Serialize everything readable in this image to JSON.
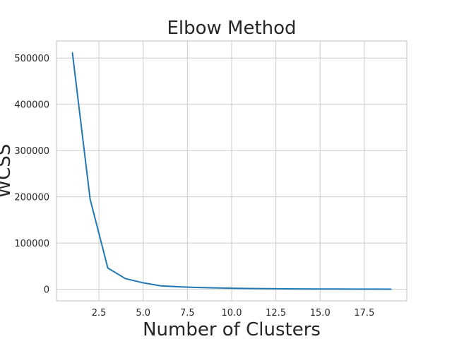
{
  "chart_data": {
    "type": "line",
    "title": "Elbow  Method",
    "xlabel": "Number of Clusters",
    "ylabel": "WCSS",
    "xlim": [
      0.1,
      19.9
    ],
    "ylim": [
      -25000,
      537000
    ],
    "xticks": [
      2.5,
      5.0,
      7.5,
      10.0,
      12.5,
      15.0,
      17.5
    ],
    "xtick_labels": [
      "2.5",
      "5.0",
      "7.5",
      "10.0",
      "12.5",
      "15.0",
      "17.5"
    ],
    "yticks": [
      0,
      100000,
      200000,
      300000,
      400000,
      500000
    ],
    "ytick_labels": [
      "0",
      "100000",
      "200000",
      "300000",
      "400000",
      "500000"
    ],
    "grid": true,
    "series": [
      {
        "color": "#1f77b4",
        "x": [
          1,
          2,
          3,
          4,
          5,
          6,
          7,
          8,
          9,
          10,
          11,
          12,
          13,
          14,
          15,
          16,
          17,
          18,
          19
        ],
        "y": [
          511000,
          195000,
          46000,
          23000,
          14000,
          7500,
          5500,
          4000,
          3000,
          2300,
          1700,
          1300,
          1000,
          800,
          600,
          500,
          400,
          300,
          250
        ]
      }
    ]
  }
}
